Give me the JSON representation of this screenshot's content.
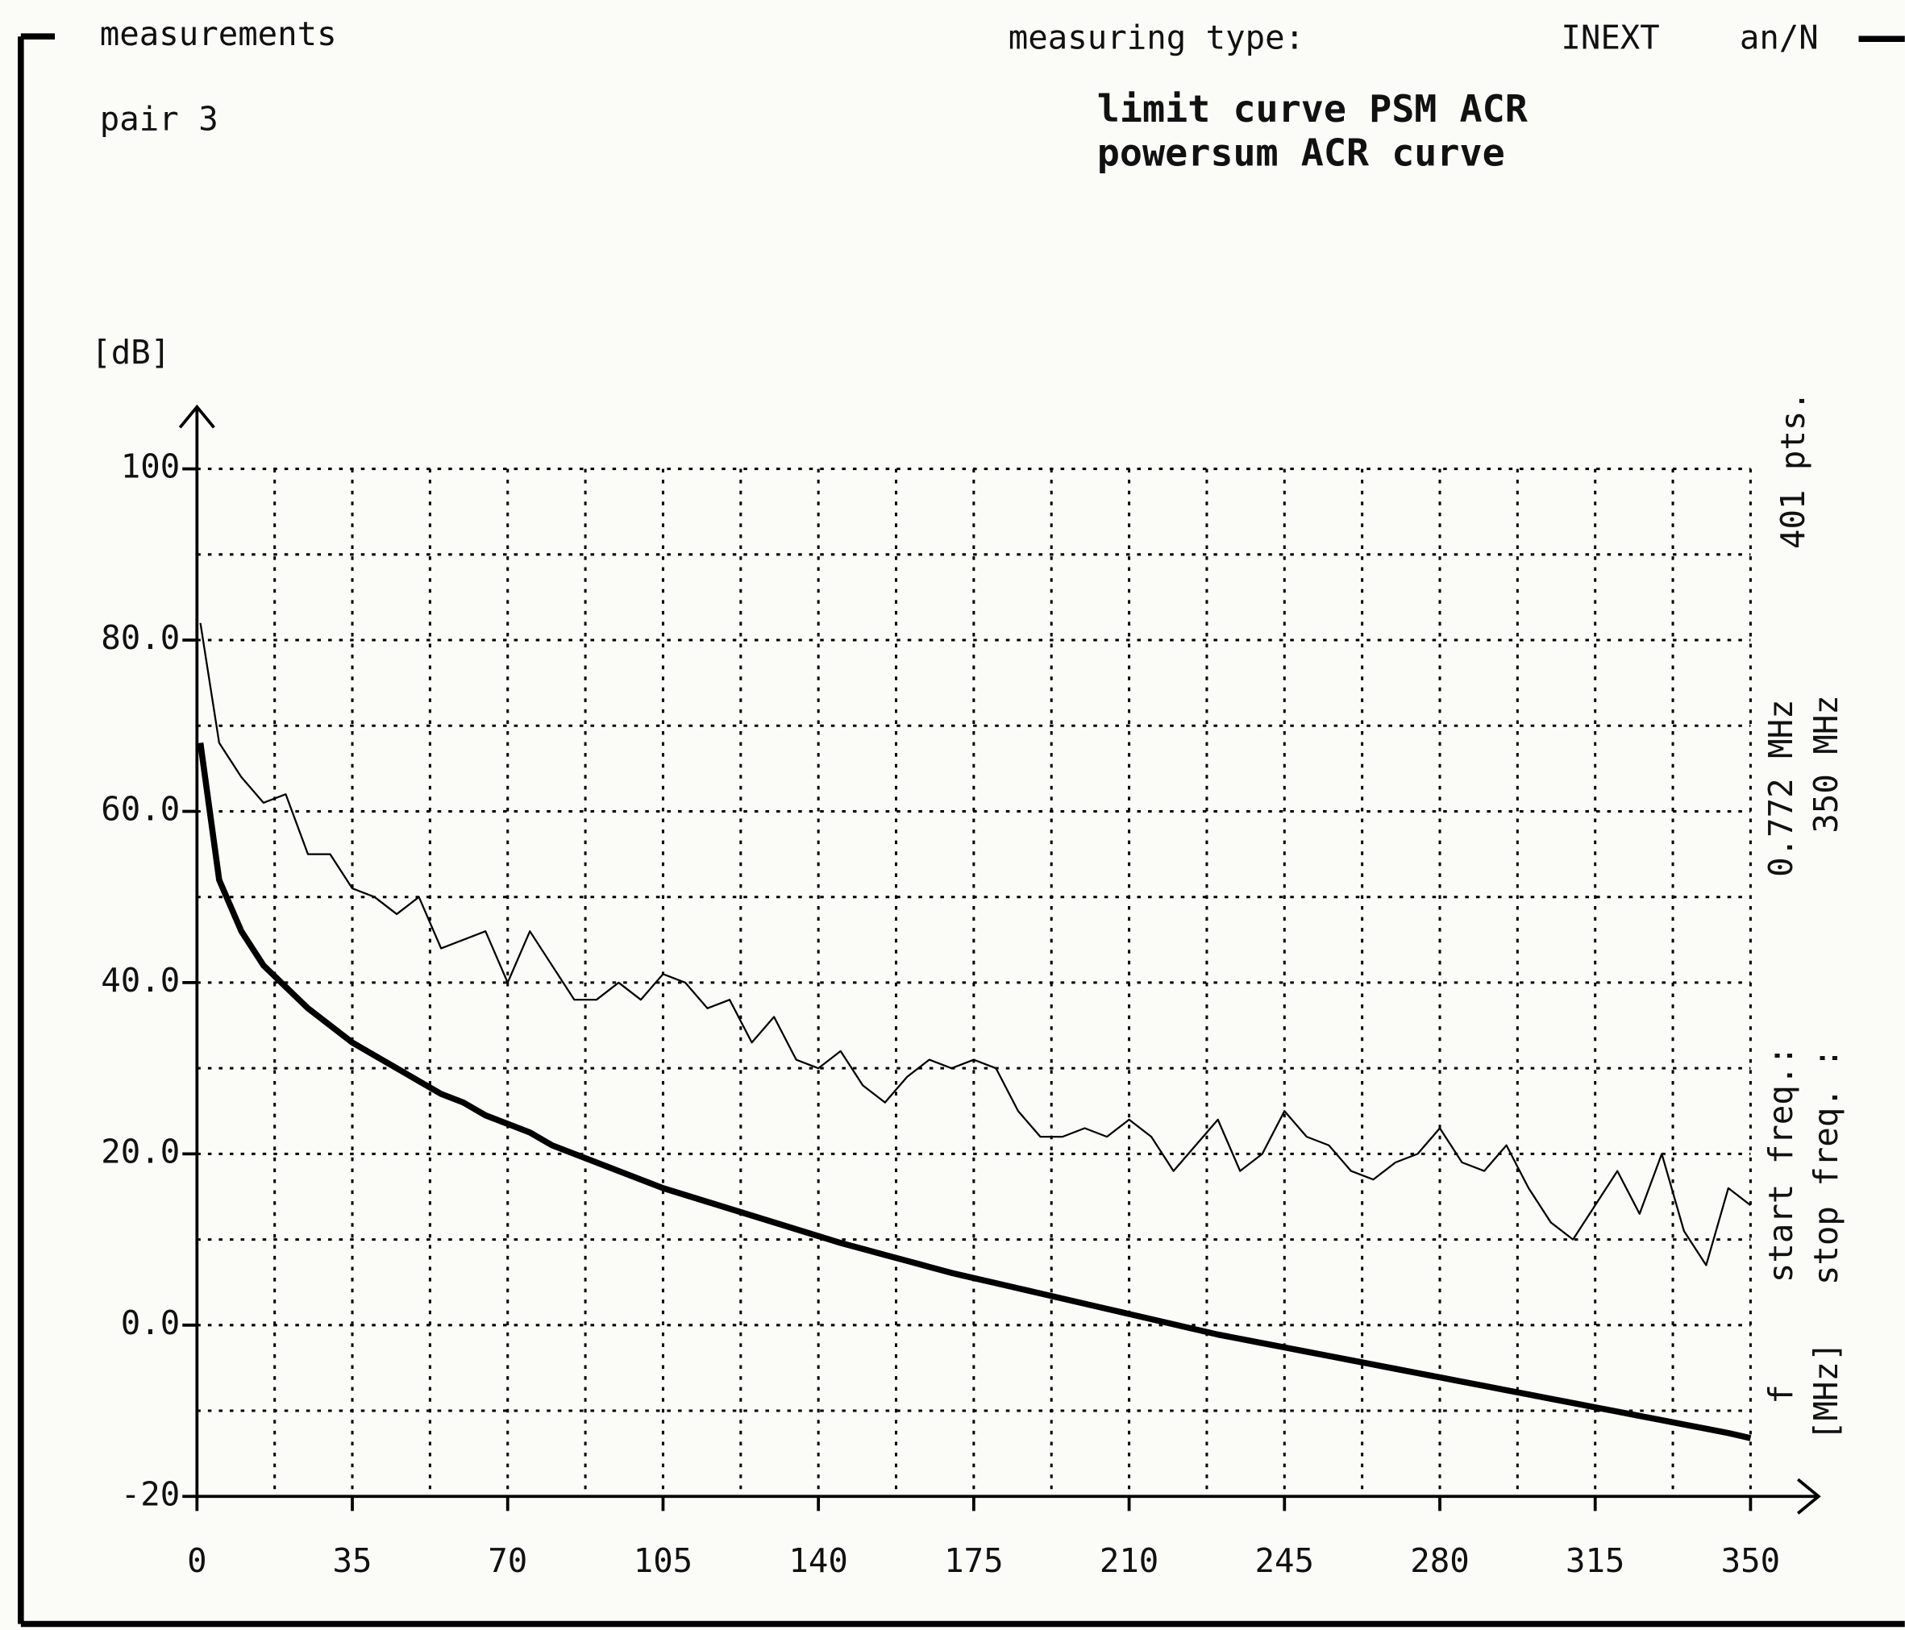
{
  "chart_data": {
    "type": "line",
    "title": "measurements",
    "subtitle": "pair 3",
    "ylabel": "[dB]",
    "annotations": [
      "measuring type:",
      "INEXT",
      "an/N",
      "401 pts.",
      "0.772 MHz",
      "350 MHz",
      "start freq.:",
      "stop freq. :",
      "f",
      "[MHz]"
    ],
    "x": [
      0.772,
      5,
      10,
      15,
      20,
      25,
      30,
      35,
      40,
      45,
      50,
      55,
      60,
      65,
      70,
      75,
      80,
      85,
      90,
      95,
      100,
      105,
      110,
      115,
      120,
      125,
      130,
      135,
      140,
      145,
      150,
      155,
      160,
      165,
      170,
      175,
      180,
      185,
      190,
      195,
      200,
      205,
      210,
      215,
      220,
      225,
      230,
      235,
      240,
      245,
      250,
      255,
      260,
      265,
      270,
      275,
      280,
      285,
      290,
      295,
      300,
      305,
      310,
      315,
      320,
      325,
      330,
      335,
      340,
      345,
      350
    ],
    "series": [
      {
        "name": "limit curve PSM ACR",
        "color": "#000000",
        "width": 5,
        "values": [
          68,
          52,
          46,
          42,
          39.5,
          37,
          35,
          33,
          31.5,
          30,
          28.5,
          27,
          26,
          24.5,
          23.5,
          22.5,
          21,
          20,
          19,
          18,
          17,
          16,
          15.2,
          14.4,
          13.6,
          12.8,
          12,
          11.2,
          10.4,
          9.6,
          8.9,
          8.2,
          7.5,
          6.8,
          6.1,
          5.5,
          4.9,
          4.3,
          3.7,
          3.1,
          2.5,
          1.9,
          1.3,
          0.7,
          0.1,
          -0.5,
          -1.1,
          -1.6,
          -2.1,
          -2.6,
          -3.1,
          -3.6,
          -4.1,
          -4.6,
          -5.1,
          -5.6,
          -6.1,
          -6.6,
          -7.1,
          -7.6,
          -8.1,
          -8.6,
          -9.1,
          -9.6,
          -10.1,
          -10.6,
          -11.1,
          -11.6,
          -12.1,
          -12.6,
          -13.2
        ]
      },
      {
        "name": "powersum ACR curve",
        "color": "#000000",
        "width": 1.5,
        "values": [
          82,
          68,
          64,
          61,
          62,
          55,
          55,
          51,
          50,
          48,
          50,
          44,
          45,
          46,
          40,
          46,
          42,
          38,
          38,
          40,
          38,
          41,
          40,
          37,
          38,
          33,
          36,
          31,
          30,
          32,
          28,
          26,
          29,
          31,
          30,
          31,
          30,
          25,
          22,
          22,
          23,
          22,
          24,
          22,
          18,
          21,
          24,
          18,
          20,
          25,
          22,
          21,
          18,
          17,
          19,
          20,
          23,
          19,
          18,
          21,
          16,
          12,
          10,
          14,
          18,
          13,
          20,
          11,
          7,
          16,
          14
        ]
      }
    ],
    "xlim": [
      0,
      350
    ],
    "xticks": [
      0,
      35,
      70,
      105,
      140,
      175,
      210,
      245,
      280,
      315,
      350
    ],
    "xminorticks": [
      17.5,
      52.5,
      87.5,
      122.5,
      157.5,
      192.5,
      227.5,
      262.5,
      297.5,
      332.5
    ],
    "ylim": [
      -20,
      100
    ],
    "yticks": [
      -20,
      {
        "value": 0,
        "label": "0.0"
      },
      {
        "value": 20,
        "label": "20.0"
      },
      {
        "value": 40,
        "label": "40.0"
      },
      {
        "value": 60,
        "label": "60.0"
      },
      {
        "value": 80,
        "label": "80.0"
      },
      100
    ],
    "yminorticks": [
      -10,
      10,
      30,
      50,
      70,
      90
    ],
    "grid": true
  }
}
